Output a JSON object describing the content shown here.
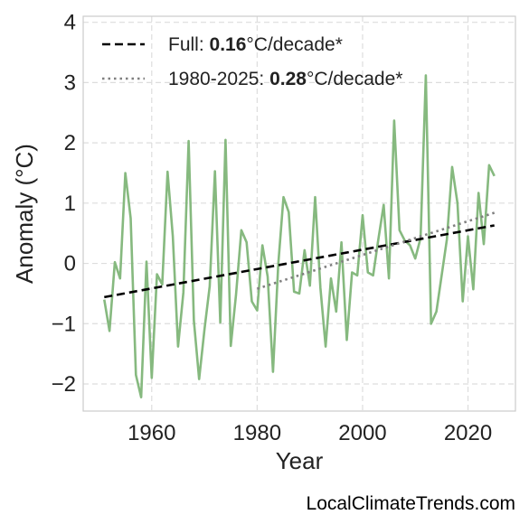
{
  "chart_data": {
    "type": "line",
    "xlabel": "Year",
    "ylabel": "Anomaly (°C)",
    "xlim": [
      1947,
      2029
    ],
    "ylim": [
      -2.45,
      4.1
    ],
    "xticks": [
      1960,
      1980,
      2000,
      2020
    ],
    "yticks": [
      -2,
      -1,
      0,
      1,
      2,
      3,
      4
    ],
    "ytick_labels": [
      "−2",
      "−1",
      "0",
      "1",
      "2",
      "3",
      "4"
    ],
    "grid": true,
    "legend_placement": "top-left",
    "series": [
      {
        "color": "#86b97f",
        "x": [
          1951,
          1952,
          1953,
          1954,
          1955,
          1956,
          1957,
          1958,
          1959,
          1960,
          1961,
          1962,
          1963,
          1964,
          1965,
          1966,
          1967,
          1968,
          1969,
          1970,
          1971,
          1972,
          1973,
          1974,
          1975,
          1976,
          1977,
          1978,
          1979,
          1980,
          1981,
          1982,
          1983,
          1984,
          1985,
          1986,
          1987,
          1988,
          1989,
          1990,
          1991,
          1992,
          1993,
          1994,
          1995,
          1996,
          1997,
          1998,
          1999,
          2000,
          2001,
          2002,
          2003,
          2004,
          2005,
          2006,
          2007,
          2008,
          2009,
          2010,
          2011,
          2012,
          2013,
          2014,
          2015,
          2016,
          2017,
          2018,
          2019,
          2020,
          2021,
          2022,
          2023,
          2024,
          2025
        ],
        "y": [
          -0.6,
          -1.12,
          0.02,
          -0.25,
          1.5,
          0.75,
          -1.85,
          -2.22,
          0.03,
          -1.9,
          -0.18,
          -0.35,
          1.52,
          0.45,
          -1.38,
          -0.48,
          2.03,
          -0.95,
          -1.92,
          -1.1,
          -0.38,
          1.53,
          -0.98,
          2.05,
          -1.37,
          -0.52,
          0.55,
          0.35,
          -0.63,
          -0.78,
          0.3,
          -0.22,
          -1.8,
          -0.02,
          1.1,
          0.85,
          -0.47,
          -0.5,
          0.22,
          -0.37,
          1.1,
          -0.4,
          -1.38,
          -0.25,
          -0.8,
          0.35,
          -1.27,
          -0.15,
          -0.2,
          0.8,
          -0.15,
          -0.2,
          0.4,
          0.97,
          -0.25,
          2.37,
          0.55,
          0.38,
          0.3,
          0.08,
          0.42,
          3.12,
          -1.0,
          -0.8,
          -0.2,
          0.4,
          1.6,
          1.0,
          -0.63,
          0.45,
          -0.43,
          1.17,
          0.32,
          1.63,
          1.45
        ]
      },
      {
        "name": "Full:",
        "trend_value": "0.16",
        "trend_unit": "°C/decade*",
        "style": "dashed",
        "color": "#000000",
        "x": [
          1951,
          2025
        ],
        "y": [
          -0.56,
          0.63
        ]
      },
      {
        "name": "1980-2025:",
        "trend_value": "0.28",
        "trend_unit": "°C/decade*",
        "style": "dotted",
        "color": "#808080",
        "x": [
          1980,
          2025
        ],
        "y": [
          -0.42,
          0.84
        ]
      }
    ]
  },
  "footer": {
    "credit": "LocalClimateTrends.com"
  }
}
